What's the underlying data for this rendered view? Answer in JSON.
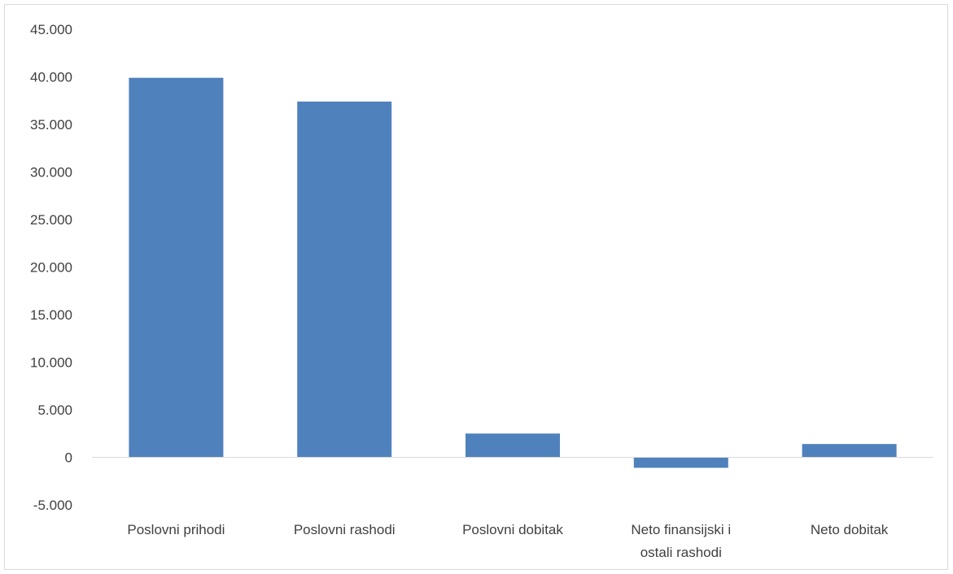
{
  "chart_data": {
    "type": "bar",
    "title": "",
    "xlabel": "",
    "ylabel": "",
    "categories": [
      [
        "Poslovni prihodi"
      ],
      [
        "Poslovni rashodi"
      ],
      [
        "Poslovni dobitak"
      ],
      [
        "Neto finansijski i",
        "ostali rashodi"
      ],
      [
        "Neto dobitak"
      ]
    ],
    "values": [
      39900,
      37400,
      2500,
      -1100,
      1400
    ],
    "ylim": [
      -5000,
      45000
    ],
    "yticks": [
      -5000,
      0,
      5000,
      10000,
      15000,
      20000,
      25000,
      30000,
      35000,
      40000,
      45000
    ],
    "ytick_labels": [
      "-5.000",
      "0",
      "5.000",
      "10.000",
      "15.000",
      "20.000",
      "25.000",
      "30.000",
      "35.000",
      "40.000",
      "45.000"
    ],
    "grid": false,
    "legend": "none",
    "bar_color": "#4f81bd",
    "axis_color": "#d9d9d9"
  }
}
